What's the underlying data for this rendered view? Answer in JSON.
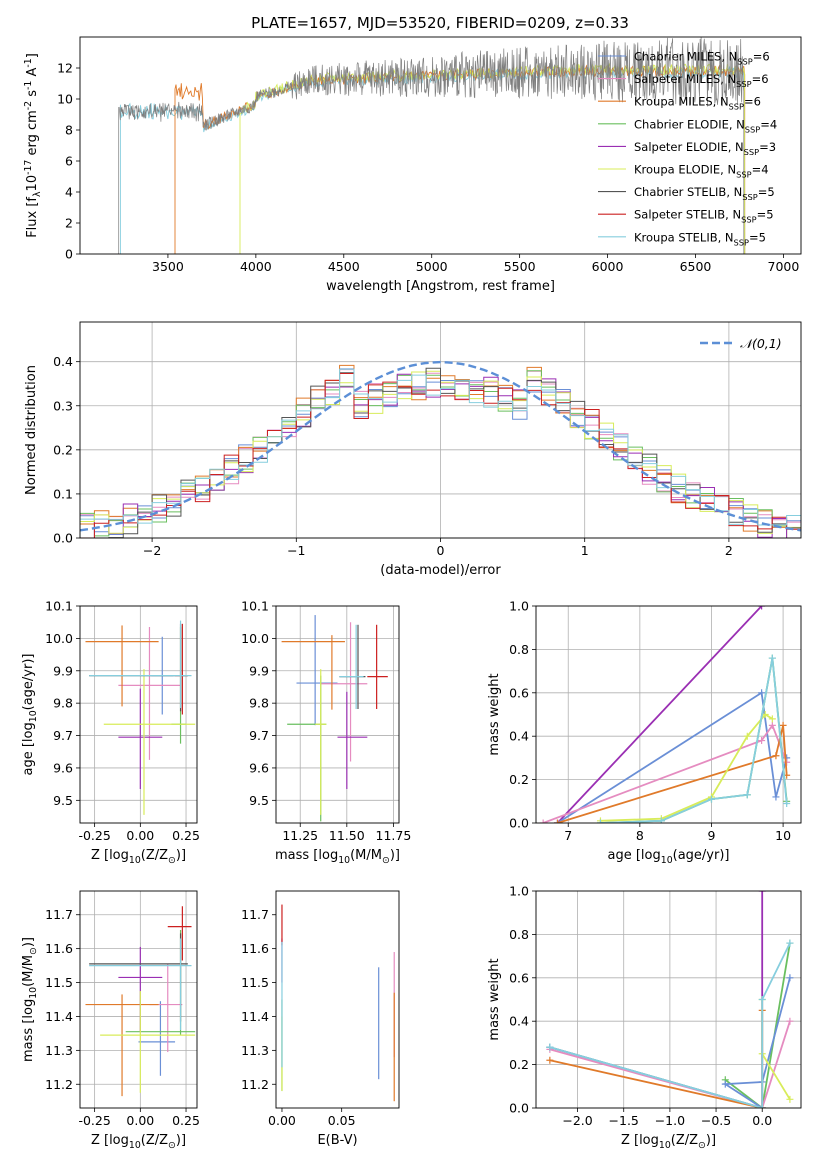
{
  "colors": {
    "chabrier_miles": "#6a8fd6",
    "salpeter_miles": "#e58cc0",
    "kroupa_miles": "#e07a2a",
    "chabrier_elodie": "#6abf5f",
    "salpeter_elodie": "#9a2fb3",
    "kroupa_elodie": "#d8ec5a",
    "chabrier_stelib": "#555555",
    "salpeter_stelib": "#cc2020",
    "kroupa_stelib": "#86cede",
    "normal_curve": "#5c8fd6",
    "grid": "#b0b0b0"
  },
  "chart_data": [
    {
      "id": "spectrum",
      "type": "line",
      "title": "PLATE=1657, MJD=53520, FIBERID=0209, z=0.33",
      "xlabel": "wavelength [Angstrom, rest frame]",
      "ylabel": "Flux [f$_\\lambda$10$^{-17}$ erg cm$^{-2}$ s$^{-1}$ A$^{-1}$]",
      "xlim": [
        3000,
        7100
      ],
      "ylim": [
        0,
        14
      ],
      "xticks": [
        3500,
        4000,
        4500,
        5000,
        5500,
        6000,
        6500,
        7000
      ],
      "yticks": [
        0,
        2,
        4,
        6,
        8,
        10,
        12
      ],
      "grid": false,
      "legend_position": "right",
      "legend": [
        {
          "label": "Chabrier MILES, N$_{SSP}$=6",
          "key": "chabrier_miles"
        },
        {
          "label": "Salpeter MILES, N$_{SSP}$=6",
          "key": "salpeter_miles"
        },
        {
          "label": "Kroupa MILES, N$_{SSP}$=6",
          "key": "kroupa_miles"
        },
        {
          "label": "Chabrier ELODIE, N$_{SSP}$=4",
          "key": "chabrier_elodie"
        },
        {
          "label": "Salpeter ELODIE, N$_{SSP}$=3",
          "key": "salpeter_elodie"
        },
        {
          "label": "Kroupa ELODIE, N$_{SSP}$=4",
          "key": "kroupa_elodie"
        },
        {
          "label": "Chabrier STELIB, N$_{SSP}$=5",
          "key": "chabrier_stelib"
        },
        {
          "label": "Salpeter STELIB, N$_{SSP}$=5",
          "key": "salpeter_stelib"
        },
        {
          "label": "Kroupa STELIB, N$_{SSP}$=5",
          "key": "kroupa_stelib"
        }
      ],
      "observed": {
        "start": 3220,
        "end": 6775,
        "level": 11.8,
        "noise": 1.5
      },
      "models": [
        {
          "key": "kroupa_stelib",
          "start": 3230,
          "end": 6780,
          "level": 11.7,
          "blue_level": 9.2
        },
        {
          "key": "kroupa_miles",
          "start": 3540,
          "end": 6780,
          "level": 11.8,
          "blue_level": 10.5
        },
        {
          "key": "kroupa_elodie",
          "start": 3910,
          "end": 6780,
          "level": 11.9,
          "blue_level": 10.0
        }
      ]
    },
    {
      "id": "residuals",
      "type": "histogram",
      "xlabel": "(data-model)/error",
      "ylabel": "Normed distribution",
      "xlim": [
        -2.5,
        2.5
      ],
      "ylim": [
        0,
        0.49
      ],
      "xticks": [
        -2,
        -1,
        0,
        1,
        2
      ],
      "yticks": [
        0.0,
        0.1,
        0.2,
        0.3,
        0.4
      ],
      "grid": true,
      "legend_position": "top-right",
      "legend": [
        {
          "label": "$\\mathcal{N}(0,1)$",
          "key": "normal_curve",
          "style": "dashed"
        }
      ],
      "bin_width": 0.1,
      "series": [
        {
          "key": "chabrier_miles",
          "seed": 11
        },
        {
          "key": "salpeter_miles",
          "seed": 23
        },
        {
          "key": "kroupa_miles",
          "seed": 37
        },
        {
          "key": "chabrier_elodie",
          "seed": 41
        },
        {
          "key": "salpeter_elodie",
          "seed": 53
        },
        {
          "key": "kroupa_elodie",
          "seed": 67
        },
        {
          "key": "chabrier_stelib",
          "seed": 71
        },
        {
          "key": "salpeter_stelib",
          "seed": 83
        },
        {
          "key": "kroupa_stelib",
          "seed": 97
        }
      ]
    },
    {
      "id": "age_vs_z",
      "type": "scatter",
      "xlabel": "Z [log$_{10}$(Z/Z$_\\odot$)]",
      "ylabel": "age  [log$_{10}$(age/yr)]",
      "xlim": [
        -0.33,
        0.31
      ],
      "ylim": [
        9.43,
        10.1
      ],
      "xticks": [
        -0.25,
        0.0,
        0.25
      ],
      "xticklabels": [
        "-0.25",
        "0.00",
        "0.25"
      ],
      "yticks": [
        9.5,
        9.6,
        9.7,
        9.8,
        9.9,
        10.0,
        10.1
      ],
      "grid": true,
      "points": [
        {
          "key": "chabrier_miles",
          "x": 0.12,
          "y": 9.885,
          "xerr": [
            0.06,
            0.06
          ],
          "yerr": [
            0.12,
            0.12
          ]
        },
        {
          "key": "salpeter_miles",
          "x": 0.05,
          "y": 9.855,
          "xerr": [
            0.17,
            0.17
          ],
          "yerr": [
            0.23,
            0.18
          ]
        },
        {
          "key": "kroupa_miles",
          "x": -0.1,
          "y": 9.99,
          "xerr": [
            0.2,
            0.2
          ],
          "yerr": [
            0.2,
            0.05
          ]
        },
        {
          "key": "chabrier_elodie",
          "x": 0.22,
          "y": 9.735,
          "xerr": [
            0.05,
            0.03
          ],
          "yerr": [
            0.06,
            0.3
          ]
        },
        {
          "key": "salpeter_elodie",
          "x": 0.0,
          "y": 9.695,
          "xerr": [
            0.12,
            0.12
          ],
          "yerr": [
            0.16,
            0.15
          ]
        },
        {
          "key": "kroupa_elodie",
          "x": 0.02,
          "y": 9.735,
          "xerr": [
            0.22,
            0.28
          ],
          "yerr": [
            0.28,
            0.17
          ]
        },
        {
          "key": "chabrier_stelib",
          "x": 0.22,
          "y": 9.885,
          "xerr": [
            0.5,
            0.04
          ],
          "yerr": [
            0.11,
            0.16
          ]
        },
        {
          "key": "salpeter_stelib",
          "x": 0.23,
          "y": 9.885,
          "xerr": [
            0.04,
            0.03
          ],
          "yerr": [
            0.12,
            0.16
          ]
        },
        {
          "key": "kroupa_stelib",
          "x": 0.22,
          "y": 9.885,
          "xerr": [
            0.5,
            0.06
          ],
          "yerr": [
            0.1,
            0.17
          ]
        }
      ]
    },
    {
      "id": "age_vs_mass",
      "type": "scatter",
      "xlabel": "mass [log$_{10}$(M/M$_\\odot$)]",
      "ylabel": "",
      "xlim": [
        11.12,
        11.78
      ],
      "ylim": [
        9.43,
        10.1
      ],
      "xticks": [
        11.25,
        11.5,
        11.75
      ],
      "xticklabels": [
        "11.25",
        "11.50",
        "11.75"
      ],
      "yticks": [
        9.5,
        9.6,
        9.7,
        9.8,
        9.9,
        10.0,
        10.1
      ],
      "grid": true,
      "points": [
        {
          "key": "chabrier_miles",
          "x": 11.33,
          "y": 9.862,
          "xerr": [
            0.1,
            0.12
          ],
          "yerr": [
            0.13,
            0.21
          ]
        },
        {
          "key": "salpeter_miles",
          "x": 11.52,
          "y": 9.86,
          "xerr": [
            0.16,
            0.09
          ],
          "yerr": [
            0.24,
            0.19
          ]
        },
        {
          "key": "kroupa_miles",
          "x": 11.42,
          "y": 9.99,
          "xerr": [
            0.27,
            0.07
          ],
          "yerr": [
            0.21,
            0.02
          ]
        },
        {
          "key": "chabrier_elodie",
          "x": 11.36,
          "y": 9.735,
          "xerr": [
            0.18,
            0.03
          ],
          "yerr": [
            0.3,
            0.15
          ]
        },
        {
          "key": "salpeter_elodie",
          "x": 11.5,
          "y": 9.695,
          "xerr": [
            0.05,
            0.11
          ],
          "yerr": [
            0.16,
            0.14
          ]
        },
        {
          "key": "kroupa_elodie",
          "x": 11.36,
          "y": 9.735,
          "xerr": [
            0.03,
            0.03
          ],
          "yerr": [
            0.28,
            0.17
          ]
        },
        {
          "key": "chabrier_stelib",
          "x": 11.56,
          "y": 9.882,
          "xerr": [
            0.1,
            0.04
          ],
          "yerr": [
            0.1,
            0.16
          ]
        },
        {
          "key": "salpeter_stelib",
          "x": 11.66,
          "y": 9.882,
          "xerr": [
            0.05,
            0.06
          ],
          "yerr": [
            0.1,
            0.16
          ]
        },
        {
          "key": "kroupa_stelib",
          "x": 11.55,
          "y": 9.882,
          "xerr": [
            0.09,
            0.04
          ],
          "yerr": [
            0.1,
            0.16
          ]
        }
      ]
    },
    {
      "id": "weight_vs_age",
      "type": "line",
      "xlabel": "age  [log$_{10}$(age/yr)]",
      "ylabel": "mass weight",
      "xlim": [
        6.55,
        10.25
      ],
      "ylim": [
        0,
        1
      ],
      "xticks": [
        7,
        8,
        9,
        10
      ],
      "yticks": [
        0.0,
        0.2,
        0.4,
        0.6,
        0.8,
        1.0
      ],
      "grid": true,
      "series": [
        {
          "key": "salpeter_elodie",
          "x": [
            6.85,
            9.7
          ],
          "y": [
            0.0,
            1.0
          ]
        },
        {
          "key": "chabrier_miles",
          "x": [
            6.85,
            9.7,
            9.9,
            10.05
          ],
          "y": [
            0.0,
            0.6,
            0.12,
            0.3
          ]
        },
        {
          "key": "salpeter_miles",
          "x": [
            6.65,
            9.7,
            9.85,
            10.05
          ],
          "y": [
            0.0,
            0.38,
            0.45,
            0.28
          ]
        },
        {
          "key": "kroupa_miles",
          "x": [
            6.85,
            9.9,
            10.0,
            10.05
          ],
          "y": [
            0.0,
            0.31,
            0.45,
            0.22
          ]
        },
        {
          "key": "chabrier_elodie",
          "x": [
            7.45,
            8.3,
            9.0,
            9.5,
            9.85,
            10.05
          ],
          "y": [
            0.0,
            0.01,
            0.11,
            0.13,
            0.76,
            0.1
          ]
        },
        {
          "key": "kroupa_elodie",
          "x": [
            7.45,
            8.3,
            9.0,
            9.5,
            9.75,
            9.85
          ],
          "y": [
            0.01,
            0.02,
            0.12,
            0.4,
            0.5,
            0.48
          ]
        },
        {
          "key": "kroupa_stelib",
          "x": [
            7.45,
            8.3,
            9.0,
            9.5,
            9.85,
            10.05
          ],
          "y": [
            0.0,
            0.01,
            0.11,
            0.13,
            0.76,
            0.09
          ]
        }
      ]
    },
    {
      "id": "mass_vs_z",
      "type": "scatter",
      "xlabel": "Z [log$_{10}$(Z/Z$_\\odot$)]",
      "ylabel": "mass [log$_{10}$(M/M$_\\odot$)]",
      "xlim": [
        -0.33,
        0.31
      ],
      "ylim": [
        11.13,
        11.77
      ],
      "xticks": [
        -0.25,
        0.0,
        0.25
      ],
      "xticklabels": [
        "-0.25",
        "0.00",
        "0.25"
      ],
      "yticks": [
        11.2,
        11.3,
        11.4,
        11.5,
        11.6,
        11.7
      ],
      "grid": true,
      "points": [
        {
          "key": "chabrier_miles",
          "x": 0.11,
          "y": 11.325,
          "xerr": [
            0.12,
            0.08
          ],
          "yerr": [
            0.1,
            0.12
          ]
        },
        {
          "key": "salpeter_miles",
          "x": 0.15,
          "y": 11.435,
          "xerr": [
            0.1,
            0.08
          ],
          "yerr": [
            0.14,
            0.12
          ]
        },
        {
          "key": "kroupa_miles",
          "x": -0.1,
          "y": 11.435,
          "xerr": [
            0.2,
            0.2
          ],
          "yerr": [
            0.27,
            0.03
          ]
        },
        {
          "key": "chabrier_elodie",
          "x": 0.22,
          "y": 11.355,
          "xerr": [
            0.3,
            0.08
          ],
          "yerr": [
            0.01,
            0.3
          ]
        },
        {
          "key": "salpeter_elodie",
          "x": 0.0,
          "y": 11.515,
          "xerr": [
            0.12,
            0.12
          ],
          "yerr": [
            0.16,
            0.09
          ]
        },
        {
          "key": "kroupa_elodie",
          "x": 0.0,
          "y": 11.345,
          "xerr": [
            0.22,
            0.3
          ],
          "yerr": [
            0.17,
            0.13
          ]
        },
        {
          "key": "chabrier_stelib",
          "x": 0.22,
          "y": 11.555,
          "xerr": [
            0.5,
            0.04
          ],
          "yerr": [
            0.17,
            0.09
          ]
        },
        {
          "key": "salpeter_stelib",
          "x": 0.23,
          "y": 11.665,
          "xerr": [
            0.08,
            0.05
          ],
          "yerr": [
            0.1,
            0.06
          ]
        },
        {
          "key": "kroupa_stelib",
          "x": 0.22,
          "y": 11.55,
          "xerr": [
            0.5,
            0.06
          ],
          "yerr": [
            0.19,
            0.08
          ]
        }
      ]
    },
    {
      "id": "mass_vs_ebv",
      "type": "scatter",
      "xlabel": "E(B-V)",
      "ylabel": "",
      "xlim": [
        -0.005,
        0.098
      ],
      "ylim": [
        11.13,
        11.77
      ],
      "xticks": [
        0.0,
        0.05
      ],
      "xticklabels": [
        "0.00",
        "0.05"
      ],
      "yticks": [
        11.2,
        11.3,
        11.4,
        11.5,
        11.6,
        11.7
      ],
      "grid": false,
      "points": [
        {
          "key": "chabrier_miles",
          "x": 0.081,
          "y": 11.385,
          "yerr": [
            0.17,
            0.16
          ]
        },
        {
          "key": "salpeter_miles",
          "x": 0.094,
          "y": 11.42,
          "yerr": [
            0.14,
            0.17
          ]
        },
        {
          "key": "kroupa_miles",
          "x": 0.094,
          "y": 11.3,
          "yerr": [
            0.15,
            0.17
          ]
        },
        {
          "key": "chabrier_elodie",
          "x": 0.0,
          "y": 11.35,
          "yerr": [
            0.17,
            0.1
          ]
        },
        {
          "key": "salpeter_elodie",
          "x": 0.0,
          "y": 11.55,
          "yerr": [
            0.05,
            0.08
          ]
        },
        {
          "key": "kroupa_elodie",
          "x": 0.0,
          "y": 11.3,
          "yerr": [
            0.12,
            0.1
          ]
        },
        {
          "key": "salpeter_stelib",
          "x": 0.0,
          "y": 11.66,
          "yerr": [
            0.05,
            0.07
          ]
        },
        {
          "key": "kroupa_stelib",
          "x": 0.0,
          "y": 11.45,
          "yerr": [
            0.2,
            0.17
          ]
        }
      ]
    },
    {
      "id": "weight_vs_z",
      "type": "line",
      "xlabel": "Z [log$_{10}$(Z/Z$_\\odot$)]",
      "ylabel": "mass weight",
      "xlim": [
        -2.45,
        0.42
      ],
      "ylim": [
        0,
        1
      ],
      "xticks": [
        -2.0,
        -1.5,
        -1.0,
        -0.5,
        0.0
      ],
      "xticklabels": [
        "−2.0",
        "−1.5",
        "−1.0",
        "−0.5",
        "0.0"
      ],
      "yticks": [
        0.0,
        0.2,
        0.4,
        0.6,
        0.8,
        1.0
      ],
      "grid": true,
      "series": [
        {
          "key": "salpeter_elodie",
          "x": [
            0.0,
            0.0
          ],
          "y": [
            0.0,
            1.0
          ]
        },
        {
          "key": "chabrier_elodie",
          "x": [
            -2.3,
            0.0,
            -0.4,
            0.0,
            0.3
          ],
          "y": [
            0.28,
            0.0,
            0.13,
            0.0,
            0.76
          ]
        },
        {
          "key": "chabrier_miles",
          "x": [
            -2.3,
            0.0,
            -0.4,
            0.0,
            0.3
          ],
          "y": [
            0.28,
            0.0,
            0.11,
            0.12,
            0.6
          ]
        },
        {
          "key": "salpeter_miles",
          "x": [
            -2.3,
            0.0,
            0.3
          ],
          "y": [
            0.27,
            0.0,
            0.4
          ]
        },
        {
          "key": "kroupa_miles",
          "x": [
            -2.3,
            0.0,
            0.0
          ],
          "y": [
            0.22,
            0.0,
            0.45
          ]
        },
        {
          "key": "kroupa_elodie",
          "x": [
            0.0,
            0.0,
            0.3
          ],
          "y": [
            0.5,
            0.25,
            0.04
          ]
        },
        {
          "key": "kroupa_stelib",
          "x": [
            -2.3,
            0.0,
            0.0,
            0.3
          ],
          "y": [
            0.28,
            0.0,
            0.5,
            0.76
          ]
        }
      ]
    }
  ]
}
